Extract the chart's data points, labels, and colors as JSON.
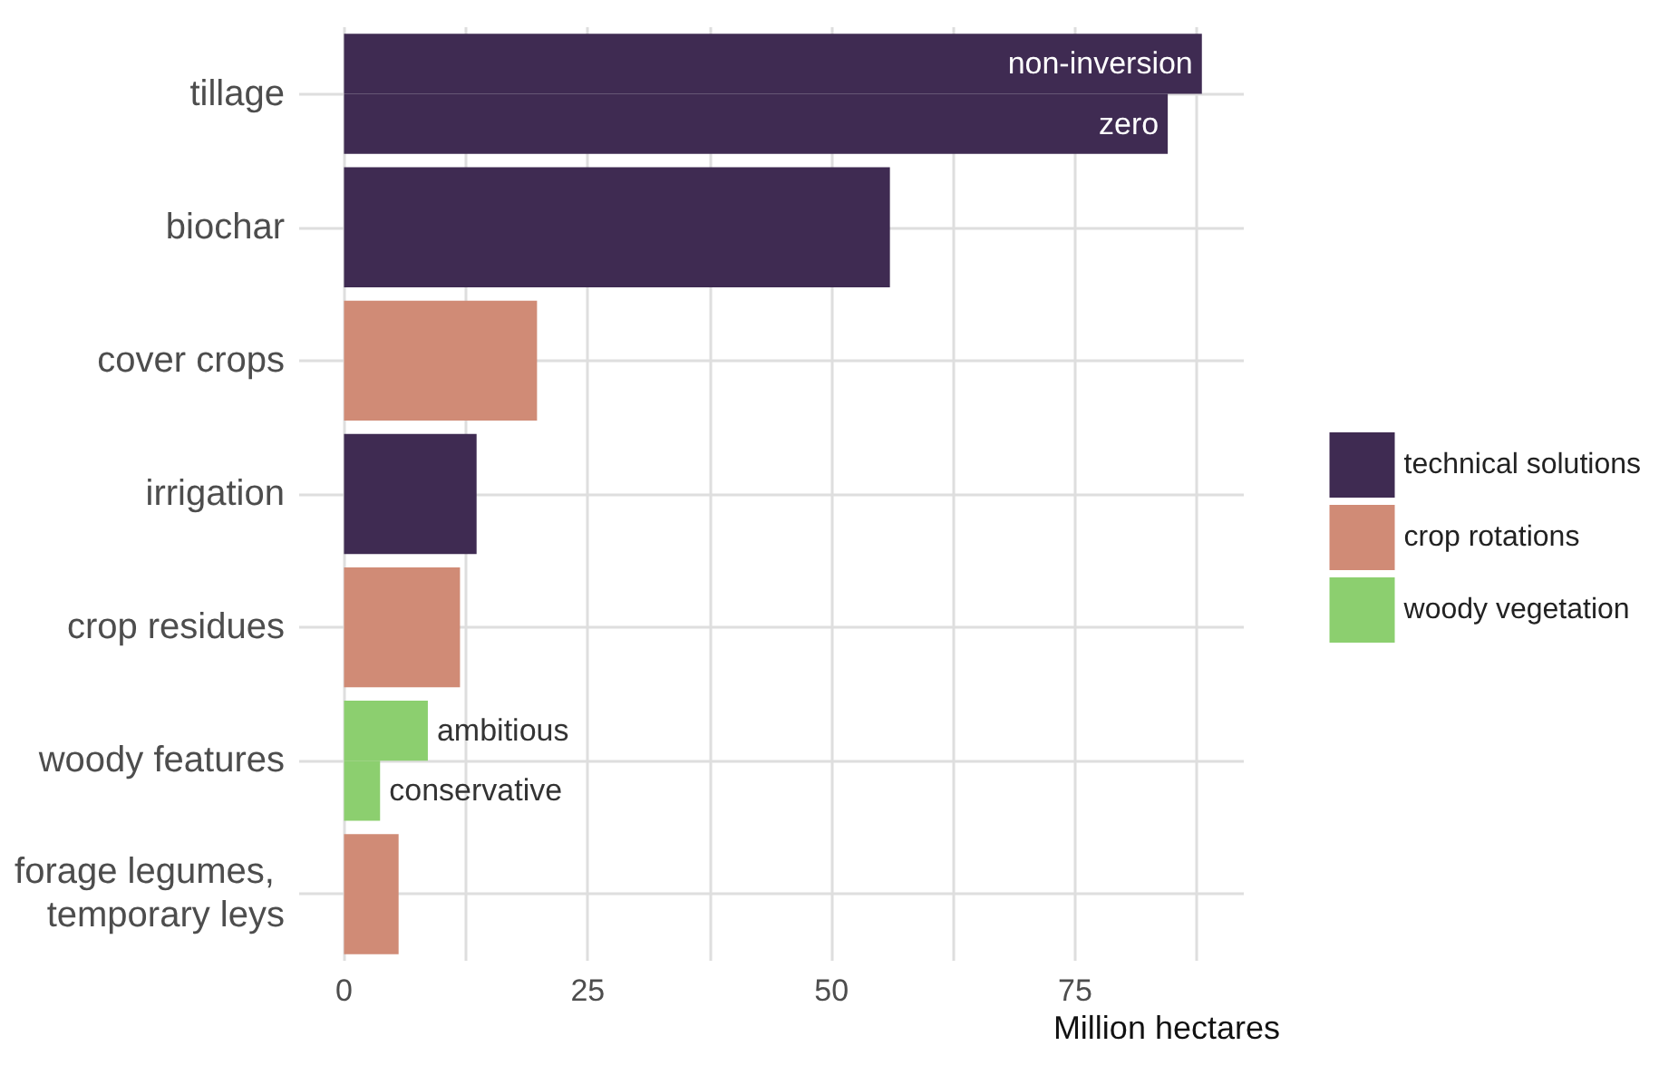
{
  "chart_data": {
    "type": "bar",
    "orientation": "horizontal",
    "xlabel": "Million hectares",
    "categories": [
      "tillage",
      "biochar",
      "cover crops",
      "irrigation",
      "crop residues",
      "woody features",
      "forage legumes, temporary leys"
    ],
    "series": [
      {
        "name": "technical solutions",
        "color": "#3f2b52",
        "values": [
          88,
          56,
          null,
          13.6,
          null,
          null,
          null
        ],
        "value_labels": [
          "non-inversion",
          null,
          null,
          null,
          null,
          null,
          null
        ]
      },
      {
        "color": "#3f2b52",
        "values": [
          84.5,
          null,
          null,
          null,
          null,
          null,
          null
        ],
        "value_labels": [
          "zero",
          null,
          null,
          null,
          null,
          null,
          null
        ]
      },
      {
        "name": "crop rotations",
        "color": "#d08b76",
        "values": [
          null,
          null,
          19.8,
          null,
          11.9,
          null,
          5.6
        ]
      },
      {
        "name": "woody vegetation",
        "color": "#8ccf6f",
        "values": [
          null,
          null,
          null,
          null,
          null,
          8.6,
          null
        ],
        "value_labels": [
          null,
          null,
          null,
          null,
          null,
          "ambitious",
          null
        ]
      },
      {
        "color": "#8ccf6f",
        "values": [
          null,
          null,
          null,
          null,
          null,
          3.7,
          null
        ],
        "value_labels": [
          null,
          null,
          null,
          null,
          null,
          "conservative",
          null
        ]
      }
    ],
    "xlim": [
      -4.6,
      92.3
    ],
    "xticks": [
      0,
      {
        "value": 12.5,
        "label": null
      },
      25,
      {
        "value": 37.5,
        "label": null
      },
      50,
      {
        "value": 62.5,
        "label": null
      },
      75,
      {
        "value": 87.5,
        "label": null
      }
    ],
    "grid": true,
    "legend": "right"
  }
}
